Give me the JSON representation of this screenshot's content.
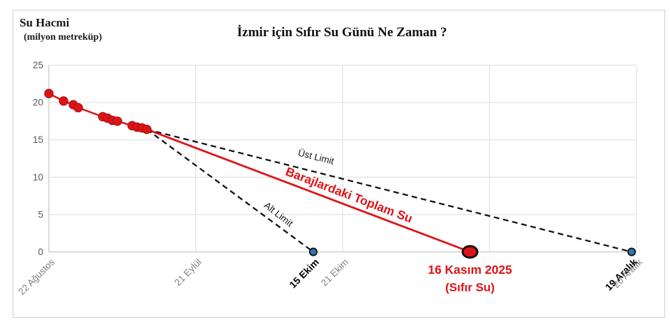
{
  "header": {
    "y_axis_title": "Su Hacmi",
    "y_axis_subtitle": "(milyon metreküp)",
    "title": "İzmir için Sıfır Su Günü Ne Zaman ?"
  },
  "colors": {
    "red": "#de1317",
    "red_marker_edge": "#9e0f13",
    "blue": "#2e75b6",
    "black": "#111111",
    "gridline": "#dedede",
    "axis_line": "#c6c6c6",
    "y_tick_text": "#595959",
    "x_tick_gray": "#7f7f7f",
    "x_tick_bold": "#000000",
    "frame_border": "#cfcfcf"
  },
  "chart_data": {
    "type": "line",
    "title": "İzmir için Sıfır Su Günü Ne Zaman ?",
    "ylabel": "Su Hacmi (milyon metreküp)",
    "x_unit": "days since 22 Ağustos",
    "xlim": [
      0,
      120
    ],
    "ylim": [
      0,
      25
    ],
    "yticks": [
      0,
      5,
      10,
      15,
      20,
      25
    ],
    "x_gridlines_days": [
      0,
      30,
      60,
      90,
      120
    ],
    "grid": true,
    "legend": "none",
    "x_tick_labels": [
      {
        "label": "22 Ağustos",
        "day": 0,
        "style": "gray"
      },
      {
        "label": "21 Eylül",
        "day": 30,
        "style": "gray"
      },
      {
        "label": "15 Ekim",
        "day": 54,
        "style": "bold"
      },
      {
        "label": "21 Ekim",
        "day": 60,
        "style": "gray"
      },
      {
        "label": "19 Aralık",
        "day": 119,
        "style": "bold"
      },
      {
        "label": "20 Aralık",
        "day": 120,
        "style": "gray"
      }
    ],
    "observed_series": {
      "name": "Barajlardaki Toplam Su",
      "color_key": "red",
      "points": [
        {
          "day": 0,
          "value": 21.2
        },
        {
          "day": 3,
          "value": 20.2
        },
        {
          "day": 5,
          "value": 19.7
        },
        {
          "day": 6,
          "value": 19.3
        },
        {
          "day": 11,
          "value": 18.1
        },
        {
          "day": 12,
          "value": 17.9
        },
        {
          "day": 13,
          "value": 17.6
        },
        {
          "day": 14,
          "value": 17.5
        },
        {
          "day": 17,
          "value": 16.9
        },
        {
          "day": 18,
          "value": 16.7
        },
        {
          "day": 19,
          "value": 16.6
        },
        {
          "day": 20,
          "value": 16.4
        }
      ]
    },
    "projections": [
      {
        "id": "ust-limit",
        "label": "Üst Limit",
        "line_style": "dashed",
        "color_key": "black",
        "from": {
          "day": 20,
          "value": 16.4
        },
        "to": {
          "day": 119,
          "value": 0
        },
        "end_marker": "blue-dot",
        "end_date_label": "19 Aralık"
      },
      {
        "id": "toplam-su",
        "label": "Barajlardaki Toplam Su",
        "line_style": "solid",
        "color_key": "red",
        "from": {
          "day": 20,
          "value": 16.4
        },
        "to": {
          "day": 86,
          "value": 0
        },
        "end_marker": "big-red-dot",
        "end_date_label": "16 Kasım 2025"
      },
      {
        "id": "alt-limit",
        "label": "Alt Limit",
        "line_style": "dashed",
        "color_key": "black",
        "from": {
          "day": 20,
          "value": 16.4
        },
        "to": {
          "day": 54,
          "value": 0
        },
        "end_marker": "blue-dot",
        "end_date_label": "15 Ekim"
      }
    ],
    "line_labels": [
      {
        "for": "ust-limit",
        "text": "Üst Limit",
        "anchor": {
          "day": 54.4,
          "value": 12.3
        },
        "rotate_deg": 14,
        "style": "black"
      },
      {
        "for": "toplam-su",
        "text": "Barajlardaki Toplam Su",
        "anchor": {
          "day": 61.0,
          "value": 7.1
        },
        "rotate_deg": 21,
        "style": "red-bold"
      },
      {
        "for": "alt-limit",
        "text": "Alt Limit",
        "anchor": {
          "day": 46.5,
          "value": 4.7
        },
        "rotate_deg": 38,
        "style": "black"
      }
    ],
    "annotation": {
      "line1": "16 Kasım 2025",
      "line2": "(Sıfır Su)",
      "day": 86
    }
  }
}
